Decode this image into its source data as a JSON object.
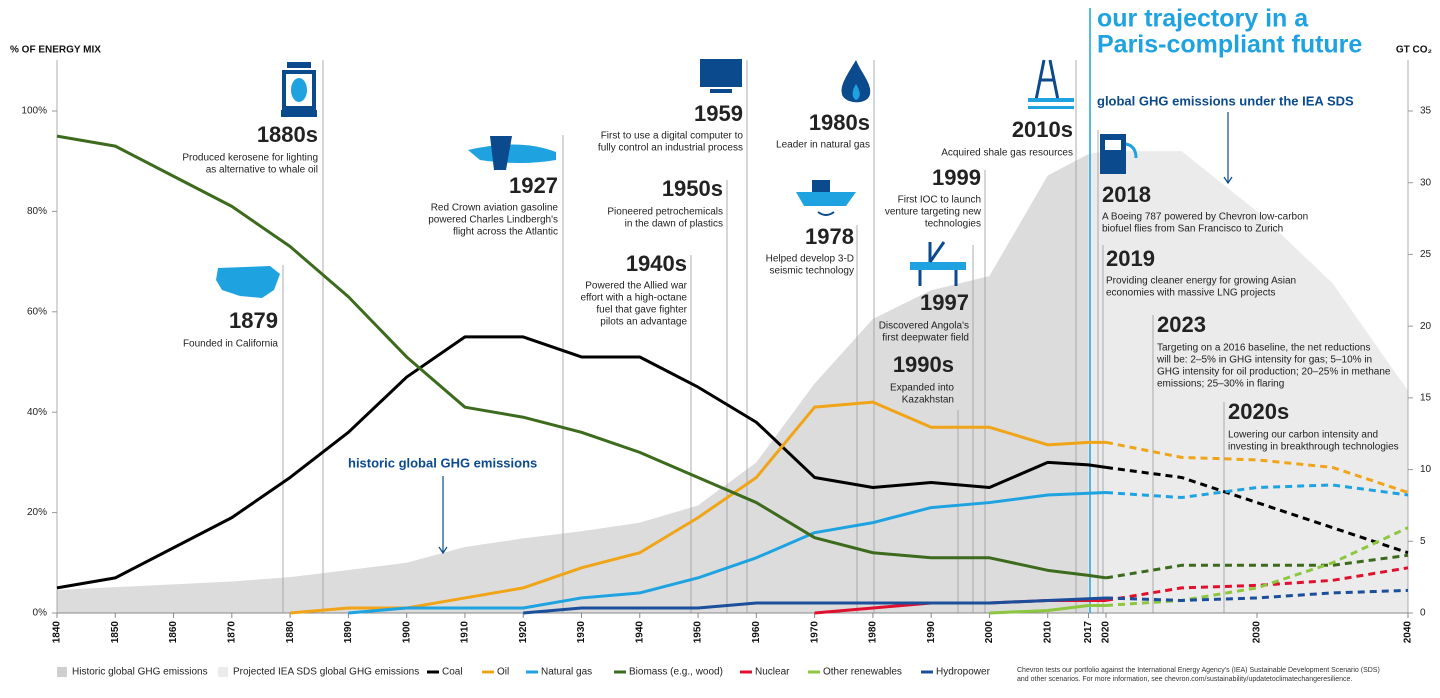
{
  "chart_data": {
    "type": "line",
    "title": [
      "our trajectory in a",
      "Paris-compliant future"
    ],
    "ylabel": "% OF ENERGY MIX",
    "y2label": "GT CO₂",
    "xsegments": [
      [
        1840,
        2020
      ],
      [
        2020,
        2040
      ]
    ],
    "xticks": [
      1840,
      1850,
      1860,
      1870,
      1880,
      1890,
      1900,
      1910,
      1920,
      1930,
      1940,
      1950,
      1960,
      1970,
      1980,
      1990,
      2000,
      2010,
      2017,
      2020,
      2030,
      2040
    ],
    "ylim": [
      0,
      100
    ],
    "yticks": [
      {
        "value": 0,
        "label": "0%"
      },
      {
        "value": 20,
        "label": "20%"
      },
      {
        "value": 40,
        "label": "40%"
      },
      {
        "value": 60,
        "label": "60%"
      },
      {
        "value": 80,
        "label": "80%"
      },
      {
        "value": 100,
        "label": "100%"
      }
    ],
    "y2lim": [
      0,
      35
    ],
    "y2ticks": [
      0,
      5,
      10,
      15,
      20,
      25,
      30,
      35
    ],
    "series": [
      {
        "name": "Historic global GHG emissions",
        "color": "#dcdcdd",
        "axis": "y2",
        "x": [
          1840,
          1850,
          1870,
          1880,
          1890,
          1900,
          1910,
          1920,
          1930,
          1940,
          1950,
          1960,
          1970,
          1980,
          1990,
          2000,
          2010,
          2017
        ],
        "values": [
          1.6,
          1.8,
          2.2,
          2.5,
          3,
          3.5,
          4.6,
          5.2,
          5.7,
          6.3,
          7.5,
          10.5,
          16,
          20.5,
          22.5,
          23.5,
          30.5,
          32
        ]
      },
      {
        "name": "Projected IEA SDS global GHG emissions",
        "color": "#ebebec",
        "axis": "y2",
        "x": [
          2017,
          2020,
          2025,
          2030,
          2035,
          2040
        ],
        "values": [
          32,
          32.2,
          32.2,
          28,
          23,
          15.5
        ]
      },
      {
        "name": "Coal",
        "color": "#000000",
        "x": [
          1840,
          1850,
          1870,
          1880,
          1890,
          1900,
          1910,
          1920,
          1930,
          1940,
          1950,
          1960,
          1970,
          1980,
          1990,
          2000,
          2010,
          2017,
          2020,
          2025,
          2030,
          2035,
          2040
        ],
        "values": [
          5,
          7,
          19,
          27,
          36,
          47,
          55,
          55,
          51,
          51,
          45,
          38,
          27,
          25,
          26,
          25,
          30,
          29.5,
          29,
          27,
          22,
          17,
          12
        ]
      },
      {
        "name": "Oil",
        "color": "#f0a418",
        "x": [
          1880,
          1890,
          1900,
          1910,
          1920,
          1930,
          1940,
          1950,
          1960,
          1970,
          1980,
          1990,
          2000,
          2010,
          2017,
          2020,
          2025,
          2030,
          2035,
          2040
        ],
        "values": [
          0,
          1,
          1,
          3,
          5,
          9,
          12,
          19,
          27,
          41,
          42,
          37,
          37,
          33.5,
          34,
          34,
          31,
          30.5,
          29,
          24
        ]
      },
      {
        "name": "Natural gas",
        "color": "#1fa3e0",
        "x": [
          1890,
          1900,
          1910,
          1920,
          1930,
          1940,
          1950,
          1960,
          1970,
          1980,
          1990,
          2000,
          2010,
          2020,
          2025,
          2030,
          2035,
          2040
        ],
        "values": [
          0,
          1,
          1,
          1,
          3,
          4,
          7,
          11,
          16,
          18,
          21,
          22,
          23.5,
          24,
          23,
          25,
          25.5,
          23.5
        ]
      },
      {
        "name": "Biomass (e.g., wood)",
        "color": "#3d6b1d",
        "x": [
          1840,
          1850,
          1860,
          1870,
          1880,
          1890,
          1900,
          1910,
          1920,
          1930,
          1940,
          1950,
          1960,
          1970,
          1980,
          1990,
          2000,
          2010,
          2017,
          2020,
          2025,
          2030,
          2035,
          2040
        ],
        "values": [
          95,
          93,
          87,
          81,
          73,
          63,
          51,
          41,
          39,
          36,
          32,
          27,
          22,
          15,
          12,
          11,
          11,
          8.5,
          7.5,
          7,
          9.5,
          9.5,
          9.5,
          11.5
        ]
      },
      {
        "name": "Nuclear",
        "color": "#e0102f",
        "x": [
          1970,
          1980,
          1990,
          2000,
          2010,
          2020,
          2025,
          2030,
          2035,
          2040
        ],
        "values": [
          0,
          1,
          2,
          2,
          2.5,
          2.5,
          5,
          5.5,
          6.5,
          9
        ]
      },
      {
        "name": "Other renewables",
        "color": "#8dc63f",
        "x": [
          2000,
          2010,
          2017,
          2020,
          2025,
          2030,
          2035,
          2040
        ],
        "values": [
          0,
          0.5,
          1.5,
          1.5,
          2.5,
          5,
          10,
          17
        ]
      },
      {
        "name": "Hydropower",
        "color": "#1b4f9c",
        "x": [
          1920,
          1930,
          1940,
          1950,
          1960,
          1970,
          1980,
          1990,
          2000,
          2010,
          2020,
          2025,
          2030,
          2035,
          2040
        ],
        "values": [
          0,
          1,
          1,
          1,
          2,
          2,
          2,
          2,
          2,
          2.5,
          3,
          2.5,
          3,
          4,
          4.5
        ]
      }
    ],
    "annotations": [
      "historic global GHG emissions",
      "global GHG emissions under the IEA SDS"
    ],
    "milestones": [
      {
        "label": "1879",
        "text": [
          "Founded in California"
        ]
      },
      {
        "label": "1880s",
        "text": [
          "Produced kerosene for lighting",
          "as alternative to whale oil"
        ]
      },
      {
        "label": "1927",
        "text": [
          "Red Crown aviation gasoline",
          "powered Charles Lindbergh's",
          "flight across the Atlantic"
        ]
      },
      {
        "label": "1940s",
        "text": [
          "Powered the Allied war",
          "effort with a high-octane",
          "fuel that gave fighter",
          "pilots an advantage"
        ]
      },
      {
        "label": "1950s",
        "text": [
          "Pioneered petrochemicals",
          "in the dawn of plastics"
        ]
      },
      {
        "label": "1959",
        "text": [
          "First to use a digital computer to",
          "fully control an industrial process"
        ]
      },
      {
        "label": "1978",
        "text": [
          "Helped develop 3-D",
          "seismic technology"
        ]
      },
      {
        "label": "1980s",
        "text": [
          "Leader in natural gas"
        ]
      },
      {
        "label": "1990s",
        "text": [
          "Expanded into",
          "Kazakhstan"
        ]
      },
      {
        "label": "1997",
        "text": [
          "Discovered Angola's",
          "first deepwater field"
        ]
      },
      {
        "label": "1999",
        "text": [
          "First IOC to launch",
          "venture targeting new",
          "technologies"
        ]
      },
      {
        "label": "2010s",
        "text": [
          "Acquired shale gas resources"
        ]
      },
      {
        "label": "2018",
        "text": [
          "A Boeing 787 powered by Chevron low-carbon",
          "biofuel flies from San Francisco to Zurich"
        ]
      },
      {
        "label": "2019",
        "text": [
          "Providing cleaner energy for growing Asian",
          "economies with massive LNG projects"
        ]
      },
      {
        "label": "2023",
        "text": [
          "Targeting on a 2016 baseline, the net reductions",
          "will be: 2–5% in GHG intensity for gas; 5–10% in",
          "GHG intensity for oil production; 20–25% in methane",
          "emissions; 25–30% in flaring"
        ]
      },
      {
        "label": "2020s",
        "text": [
          "Lowering our carbon intensity and",
          "investing in breakthrough technologies"
        ]
      }
    ],
    "footnote": [
      "Chevron tests our portfolio against the International Energy Agency's (IEA) Sustainable Development Scenario (SDS)",
      "and other scenarios. For more information, see chevron.com/sustainability/updatetoclimatechangeresilience."
    ]
  }
}
